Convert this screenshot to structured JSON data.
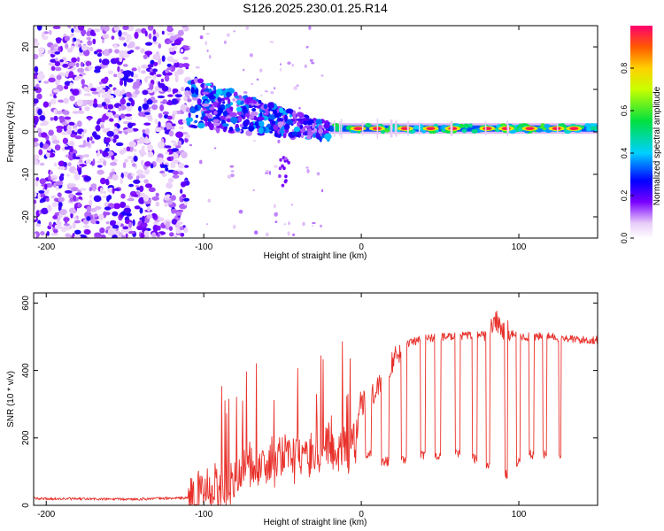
{
  "figure": {
    "title": "S126.2025.230.01.25.R14"
  },
  "chart_data": [
    {
      "type": "heatmap",
      "title": "S126.2025.230.01.25.R14",
      "xlabel": "Height of straight line (km)",
      "ylabel": "Frequency (Hz)",
      "xlim": [
        -208,
        150
      ],
      "ylim": [
        -25,
        25
      ],
      "x_ticks": [
        -200,
        -100,
        0,
        100
      ],
      "y_ticks": [
        20,
        10,
        0,
        -10,
        -20
      ],
      "colorbar": {
        "label": "Normalized spectral amplitude",
        "range": [
          0,
          1
        ],
        "ticks": [
          "0.0",
          "0.2",
          "0.4",
          "0.6",
          "0.8"
        ]
      },
      "regions": [
        {
          "x": [
            -208,
            -110
          ],
          "description_value": "broadband noise speckle",
          "amplitude": [
            0.05,
            0.25
          ],
          "freq_range": [
            -25,
            25
          ]
        },
        {
          "x": [
            -110,
            -20
          ],
          "description_value": "fading signal, scattered",
          "amplitude": [
            0.1,
            0.4
          ],
          "freq_center": [
            7,
            0
          ],
          "freq_spread": [
            6,
            2
          ]
        },
        {
          "x": [
            -20,
            150
          ],
          "description_value": "stable carrier line",
          "amplitude": [
            0.3,
            1.0
          ],
          "freq_center": 0.8
        }
      ],
      "carrier_peaks_x": [
        -2,
        10,
        28,
        44,
        58,
        80,
        92,
        107,
        124,
        135
      ]
    },
    {
      "type": "line",
      "xlabel": "Height of straight line (km)",
      "ylabel": "SNR (10 * v/v)",
      "xlim": [
        -208,
        150
      ],
      "ylim": [
        0,
        630
      ],
      "x_ticks": [
        -200,
        -100,
        0,
        100
      ],
      "y_ticks": [
        0,
        200,
        400,
        600
      ],
      "color": "#e8302a",
      "series": [
        {
          "name": "SNR",
          "x": [
            -208,
            -150,
            -110,
            -100,
            -85,
            -75,
            -65,
            -55,
            -45,
            -35,
            -25,
            -15,
            -8,
            -3,
            0,
            10,
            20,
            30,
            40,
            50,
            60,
            70,
            80,
            85,
            90,
            100,
            110,
            120,
            130,
            140,
            150
          ],
          "values": [
            20,
            18,
            22,
            35,
            60,
            110,
            120,
            130,
            140,
            150,
            160,
            170,
            160,
            200,
            300,
            340,
            430,
            480,
            495,
            500,
            500,
            505,
            510,
            550,
            520,
            500,
            500,
            500,
            495,
            490,
            490
          ]
        }
      ],
      "dropouts": [
        {
          "x": [
            2,
            7
          ],
          "min": 150
        },
        {
          "x": [
            12,
            18
          ],
          "min": 130
        },
        {
          "x": [
            25,
            29
          ],
          "min": 140
        },
        {
          "x": [
            37,
            41
          ],
          "min": 150
        },
        {
          "x": [
            46,
            51
          ],
          "min": 145
        },
        {
          "x": [
            59,
            63
          ],
          "min": 150
        },
        {
          "x": [
            70,
            74
          ],
          "min": 140
        },
        {
          "x": [
            79,
            82
          ],
          "min": 120
        },
        {
          "x": [
            91,
            93
          ],
          "min": 90
        },
        {
          "x": [
            98,
            101
          ],
          "min": 130
        },
        {
          "x": [
            106,
            110
          ],
          "min": 150
        },
        {
          "x": [
            115,
            118
          ],
          "min": 150
        },
        {
          "x": [
            125,
            127
          ],
          "min": 150
        }
      ]
    }
  ]
}
